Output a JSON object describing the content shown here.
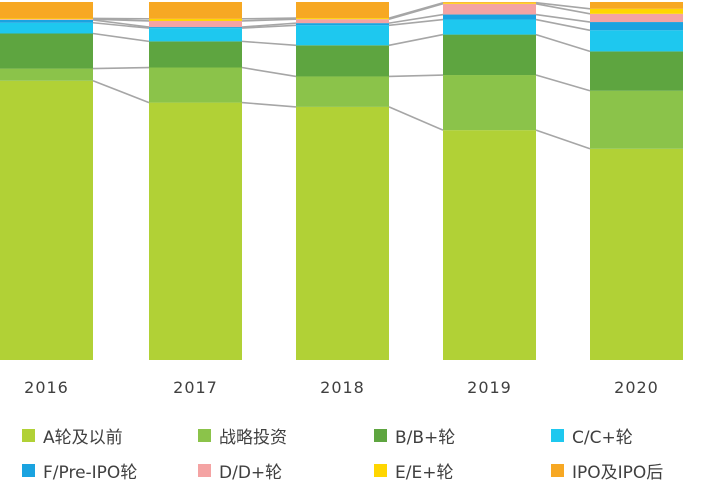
{
  "chart_data": {
    "type": "bar",
    "stacked": true,
    "normalized": true,
    "categories": [
      "2016",
      "2017",
      "2018",
      "2019",
      "2020"
    ],
    "series": [
      {
        "name": "A轮及以前",
        "color": "#b1d136",
        "values": [
          0.78,
          0.719,
          0.707,
          0.642,
          0.59
        ]
      },
      {
        "name": "战略投资",
        "color": "#8bc34a",
        "values": [
          0.034,
          0.098,
          0.085,
          0.154,
          0.162
        ]
      },
      {
        "name": "B/B+轮",
        "color": "#5ea540",
        "values": [
          0.098,
          0.073,
          0.087,
          0.113,
          0.11
        ]
      },
      {
        "name": "C/C+轮",
        "color": "#1ec8ef",
        "values": [
          0.03,
          0.037,
          0.056,
          0.042,
          0.059
        ]
      },
      {
        "name": "F/Pre-IPO轮",
        "color": "#1aa3e0",
        "values": [
          0.008,
          0.003,
          0.006,
          0.014,
          0.023
        ]
      },
      {
        "name": "D/D+轮",
        "color": "#f4a3a3",
        "values": [
          0.002,
          0.017,
          0.011,
          0.03,
          0.023
        ]
      },
      {
        "name": "E/E+轮",
        "color": "#ffd600",
        "values": [
          0.002,
          0.006,
          0.003,
          0.003,
          0.014
        ]
      },
      {
        "name": "IPO及IPO后",
        "color": "#f7a823",
        "values": [
          0.046,
          0.047,
          0.045,
          0.002,
          0.019
        ]
      }
    ],
    "ylim": [
      0,
      1
    ],
    "grid": false,
    "legend_position": "bottom",
    "connector_lines": true
  }
}
